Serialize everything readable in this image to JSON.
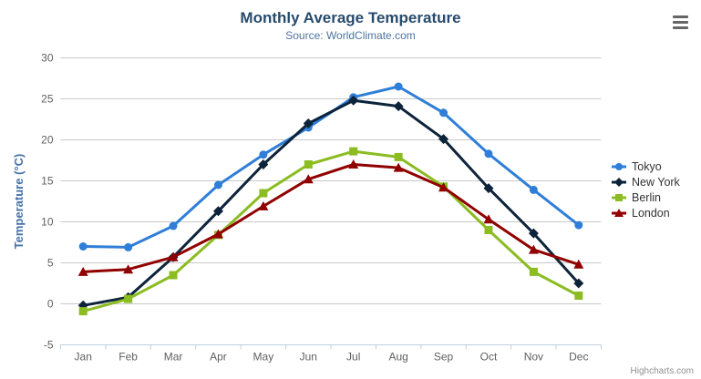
{
  "header": {
    "title": "Monthly Average Temperature",
    "subtitle": "Source: WorldClimate.com"
  },
  "credits": {
    "label": "Highcharts.com"
  },
  "menu_button": {
    "name": "chart-context-menu"
  },
  "palette": {
    "title_color": "#274b6d",
    "subtitle_color": "#4d759e",
    "axis_label_color": "#606060",
    "yaxis_title_color": "#4572A7",
    "grid_color": "#C9C9C9",
    "axis_line_color": "#C0D0E0",
    "legend_text_color": "#333333",
    "credits_color": "#909090",
    "menu_icon_color": "#666666"
  },
  "chart_data": {
    "type": "line",
    "title": "Monthly Average Temperature",
    "subtitle": "Source: WorldClimate.com",
    "xlabel": "",
    "ylabel": "Temperature (°C)",
    "ylim": [
      -5,
      30
    ],
    "ytick_step": 5,
    "yticks": [
      -5,
      0,
      5,
      10,
      15,
      20,
      25,
      30
    ],
    "grid": true,
    "legend_position": "right",
    "categories": [
      "Jan",
      "Feb",
      "Mar",
      "Apr",
      "May",
      "Jun",
      "Jul",
      "Aug",
      "Sep",
      "Oct",
      "Nov",
      "Dec"
    ],
    "series": [
      {
        "name": "Tokyo",
        "color": "#2f7ed8",
        "marker": "circle",
        "values": [
          7.0,
          6.9,
          9.5,
          14.5,
          18.2,
          21.5,
          25.2,
          26.5,
          23.3,
          18.3,
          13.9,
          9.6
        ]
      },
      {
        "name": "New York",
        "color": "#0d233a",
        "marker": "diamond",
        "values": [
          -0.2,
          0.8,
          5.7,
          11.3,
          17.0,
          22.0,
          24.8,
          24.1,
          20.1,
          14.1,
          8.6,
          2.5
        ]
      },
      {
        "name": "Berlin",
        "color": "#8bbc21",
        "marker": "square",
        "values": [
          -0.9,
          0.6,
          3.5,
          8.4,
          13.5,
          17.0,
          18.6,
          17.9,
          14.3,
          9.0,
          3.9,
          1.0
        ]
      },
      {
        "name": "London",
        "color": "#910000",
        "marker": "triangle",
        "values": [
          3.9,
          4.2,
          5.7,
          8.5,
          11.9,
          15.2,
          17.0,
          16.6,
          14.2,
          10.3,
          6.6,
          4.8
        ]
      }
    ]
  }
}
